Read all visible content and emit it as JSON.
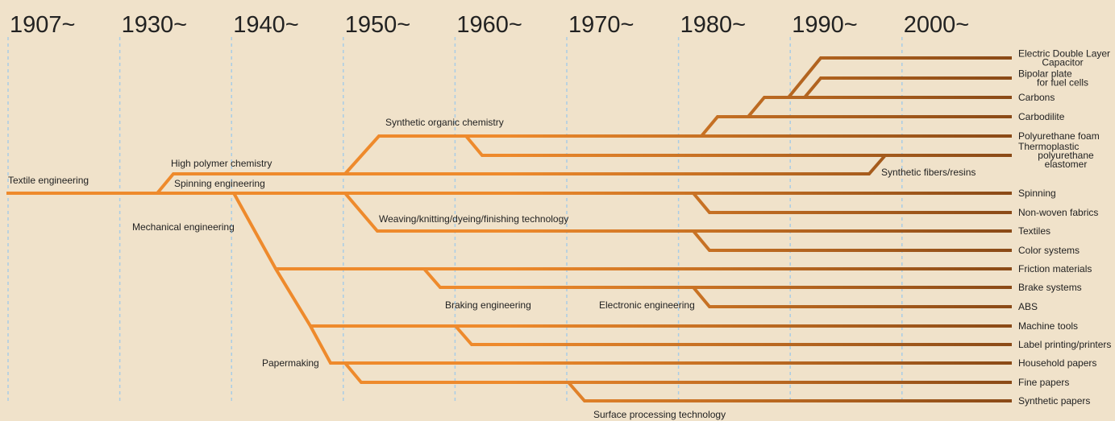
{
  "eras": [
    "1907~",
    "1930~",
    "1940~",
    "1950~",
    "1960~",
    "1970~",
    "1980~",
    "1990~",
    "2000~"
  ],
  "branch_labels": [
    "Textile engineering",
    "High polymer chemistry",
    "Spinning engineering",
    "Mechanical engineering",
    "Synthetic organic chemistry",
    "Weaving/knitting/dyeing/finishing technology",
    "Braking engineering",
    "Electronic engineering",
    "Papermaking",
    "Surface processing technology",
    "Synthetic fibers/resins"
  ],
  "outcomes": [
    [
      "Electric Double Layer",
      "Capacitor"
    ],
    [
      "Bipolar plate",
      "for fuel cells"
    ],
    [
      "Carbons"
    ],
    [
      "Carbodilite"
    ],
    [
      "Polyurethane foam"
    ],
    [
      "Thermoplastic",
      "polyurethane",
      "elastomer"
    ],
    [
      "Spinning"
    ],
    [
      "Non-woven fabrics"
    ],
    [
      "Textiles"
    ],
    [
      "Color systems"
    ],
    [
      "Friction materials"
    ],
    [
      "Brake systems"
    ],
    [
      "ABS"
    ],
    [
      "Machine tools"
    ],
    [
      "Label printing/printers"
    ],
    [
      "Household papers"
    ],
    [
      "Fine papers"
    ],
    [
      "Synthetic papers"
    ]
  ]
}
